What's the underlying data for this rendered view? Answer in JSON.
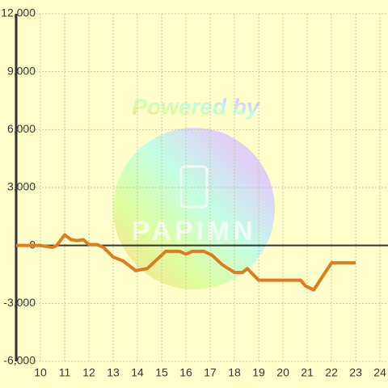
{
  "chart_data": {
    "type": "line",
    "watermark": "Powered by",
    "watermark_logo": "PAPIMN",
    "x": [
      9,
      10,
      10.5,
      10.67,
      11,
      11.27,
      11.5,
      11.77,
      12,
      12.33,
      12.6,
      13,
      13.4,
      13.93,
      14.4,
      15.17,
      15.73,
      16,
      16.27,
      16.73,
      17.07,
      17.5,
      18,
      18.33,
      18.53,
      19,
      20.73,
      20.93,
      21.27,
      22,
      23
    ],
    "series": [
      {
        "color": "#e07b20",
        "values": [
          0,
          0,
          -100,
          0,
          550,
          300,
          250,
          300,
          50,
          50,
          -100,
          -600,
          -800,
          -1300,
          -1200,
          -300,
          -300,
          -450,
          -300,
          -300,
          -500,
          -1000,
          -1400,
          -1400,
          -1200,
          -1800,
          -1800,
          -2100,
          -2300,
          -900,
          -900
        ]
      }
    ],
    "xlim": [
      9,
      24.33
    ],
    "xticks": [
      10,
      11,
      12,
      13,
      14,
      15,
      16,
      17,
      18,
      19,
      20,
      21,
      22,
      23,
      24
    ],
    "ylim": [
      -6000,
      12000
    ],
    "yticks": [
      {
        "value": -6000,
        "label": "-6,000"
      },
      {
        "value": -3000,
        "label": "-3,000"
      },
      0,
      {
        "value": 3000,
        "label": "3,000"
      },
      {
        "value": 6000,
        "label": "6,000"
      },
      {
        "value": 9000,
        "label": "9,000"
      },
      {
        "value": 12000,
        "label": "12,000"
      }
    ],
    "grid": true
  }
}
